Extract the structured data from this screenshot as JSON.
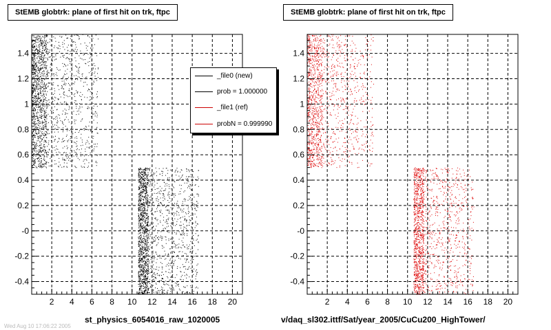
{
  "chart_data": [
    {
      "type": "scatter",
      "title": "StEMB globtrk: plane of first hit on trk, ftpc",
      "xlabel": "st_physics_6054016_raw_1020005",
      "ylabel": "",
      "xlim": [
        0,
        21
      ],
      "ylim": [
        -0.5,
        1.55
      ],
      "x_ticks": [
        "2",
        "4",
        "6",
        "8",
        "10",
        "12",
        "14",
        "16",
        "18",
        "20"
      ],
      "y_ticks": [
        "-0.4",
        "-0.2",
        "-0",
        "0.2",
        "0.4",
        "0.6",
        "0.8",
        "1",
        "1.2",
        "1.4"
      ],
      "grid": true,
      "series": [
        {
          "name": "_file0 (new)",
          "color": "#000000",
          "clusters": [
            {
              "x": [
                0,
                6.6
              ],
              "y": [
                0.5,
                1.55
              ],
              "dense_x": [
                0,
                1.5
              ],
              "points": 1900
            },
            {
              "x": [
                10.6,
                16.6
              ],
              "y": [
                -0.5,
                0.5
              ],
              "dense_x": [
                10.6,
                11.6
              ],
              "points": 2100
            }
          ]
        }
      ],
      "legend": {
        "position": "top-right",
        "entries": [
          {
            "label": "_file0 (new)",
            "color": "#000000"
          },
          {
            "label": "prob = 1.000000",
            "color": "#000000"
          },
          {
            "label": "_file1 (ref)",
            "color": "#cc0000"
          },
          {
            "label": "probN = 0.999990",
            "color": "#cc0000"
          }
        ]
      }
    },
    {
      "type": "scatter",
      "title": "StEMB globtrk: plane of first hit on trk, ftpc",
      "xlabel": "v/daq_sl302.ittf/Sat/year_2005/CuCu200_HighTower/",
      "ylabel": "",
      "xlim": [
        0,
        21
      ],
      "ylim": [
        -0.5,
        1.55
      ],
      "x_ticks": [
        "2",
        "4",
        "6",
        "8",
        "10",
        "12",
        "14",
        "16",
        "18",
        "20"
      ],
      "y_ticks": [
        "-0.4",
        "-0.2",
        "-0",
        "0.2",
        "0.4",
        "0.6",
        "0.8",
        "1",
        "1.2",
        "1.4"
      ],
      "grid": true,
      "series": [
        {
          "name": "_file1 (ref)",
          "color": "#dd0000",
          "clusters": [
            {
              "x": [
                0,
                6.6
              ],
              "y": [
                0.5,
                1.55
              ],
              "dense_x": [
                0,
                1.5
              ],
              "points": 1500
            },
            {
              "x": [
                10.6,
                16.6
              ],
              "y": [
                -0.5,
                0.5
              ],
              "dense_x": [
                10.6,
                11.6
              ],
              "points": 1700
            }
          ]
        }
      ]
    }
  ],
  "footnote": "Wed Aug 10 17:06:22 2005"
}
